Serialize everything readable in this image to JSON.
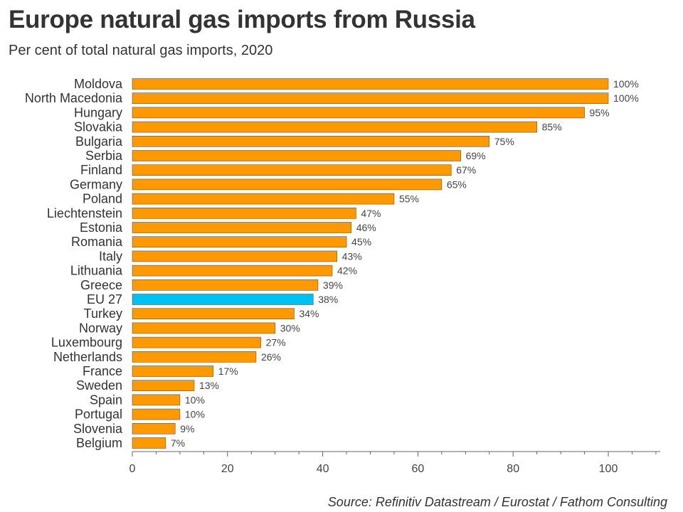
{
  "header": {
    "title": "Europe natural gas imports from Russia",
    "subtitle": "Per cent of total natural gas imports, 2020"
  },
  "footer": {
    "source": "Source: Refinitiv Datastream / Eurostat / Fathom Consulting"
  },
  "colors": {
    "bar": "#ff9900",
    "highlight": "#00bff3",
    "bar_stroke": "#555555",
    "axis": "#666666"
  },
  "chart_data": {
    "type": "bar",
    "orientation": "horizontal",
    "title": "Europe natural gas imports from Russia",
    "subtitle": "Per cent of total natural gas imports, 2020",
    "categories": [
      "Moldova",
      "North Macedonia",
      "Hungary",
      "Slovakia",
      "Bulgaria",
      "Serbia",
      "Finland",
      "Germany",
      "Poland",
      "Liechtenstein",
      "Estonia",
      "Romania",
      "Italy",
      "Lithuania",
      "Greece",
      "EU 27",
      "Turkey",
      "Norway",
      "Luxembourg",
      "Netherlands",
      "France",
      "Sweden",
      "Spain",
      "Portugal",
      "Slovenia",
      "Belgium"
    ],
    "values": [
      100,
      100,
      95,
      85,
      75,
      69,
      67,
      65,
      55,
      47,
      46,
      45,
      43,
      42,
      39,
      38,
      34,
      30,
      27,
      26,
      17,
      13,
      10,
      10,
      9,
      7
    ],
    "value_labels": [
      "100%",
      "100%",
      "95%",
      "85%",
      "75%",
      "69%",
      "67%",
      "65%",
      "55%",
      "47%",
      "46%",
      "45%",
      "43%",
      "42%",
      "39%",
      "38%",
      "34%",
      "30%",
      "27%",
      "26%",
      "17%",
      "13%",
      "10%",
      "10%",
      "9%",
      "7%"
    ],
    "highlight_category": "EU 27",
    "xlim": [
      0,
      111
    ],
    "xticks": [
      0,
      20,
      40,
      60,
      80,
      100
    ],
    "grid": false,
    "legend": "none"
  }
}
